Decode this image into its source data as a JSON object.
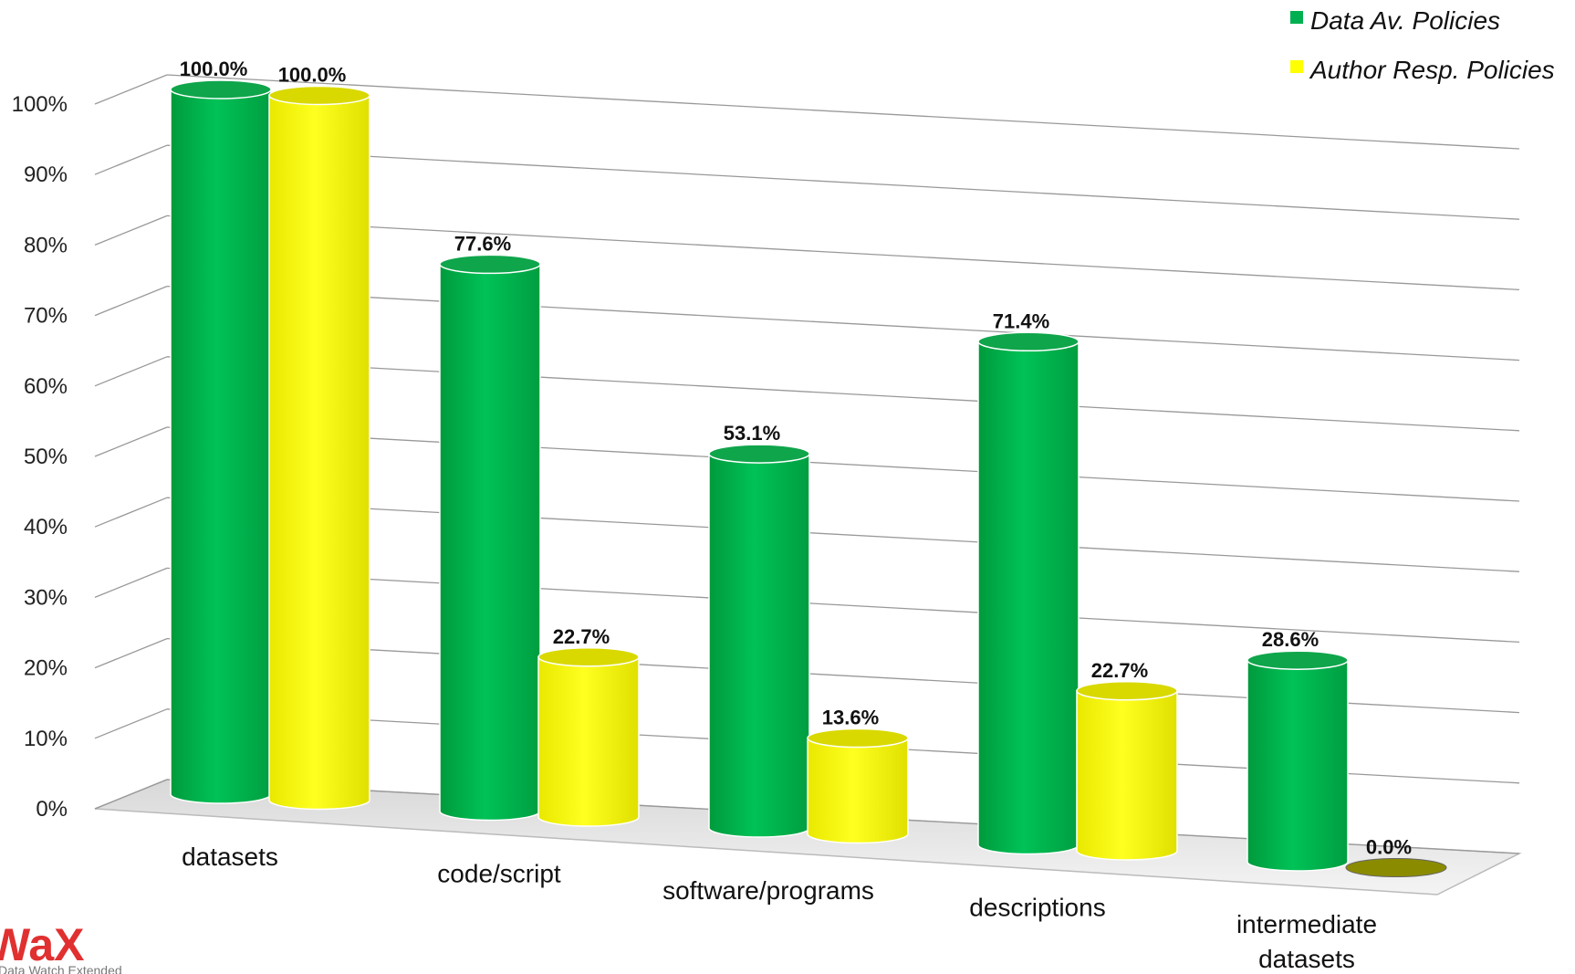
{
  "chart_data": {
    "type": "bar",
    "title": "",
    "xlabel": "",
    "ylabel": "",
    "ylim": [
      0,
      100
    ],
    "y_ticks": [
      "0%",
      "10%",
      "20%",
      "30%",
      "40%",
      "50%",
      "60%",
      "70%",
      "80%",
      "90%",
      "100%"
    ],
    "categories": [
      [
        "datasets"
      ],
      [
        "code/script"
      ],
      [
        "software/programs"
      ],
      [
        "descriptions"
      ],
      [
        "intermediate",
        "datasets"
      ]
    ],
    "series": [
      {
        "name": "Data Av. Policies",
        "color": "#00b050",
        "values": [
          100.0,
          77.6,
          53.1,
          71.4,
          28.6
        ],
        "labels": [
          "100.0%",
          "77.6%",
          "53.1%",
          "71.4%",
          "28.6%"
        ]
      },
      {
        "name": "Author Resp. Policies",
        "color": "#ffff00",
        "values": [
          100.0,
          22.7,
          13.6,
          22.7,
          0.0
        ],
        "labels": [
          "100.0%",
          "22.7%",
          "13.6%",
          "22.7%",
          "0.0%"
        ]
      }
    ],
    "grid": true,
    "legend": "top-right",
    "style": "3d-cylinder"
  },
  "logo": {
    "text": "WaX",
    "subtitle": "Data Watch Extended",
    "color": "#e03030"
  }
}
